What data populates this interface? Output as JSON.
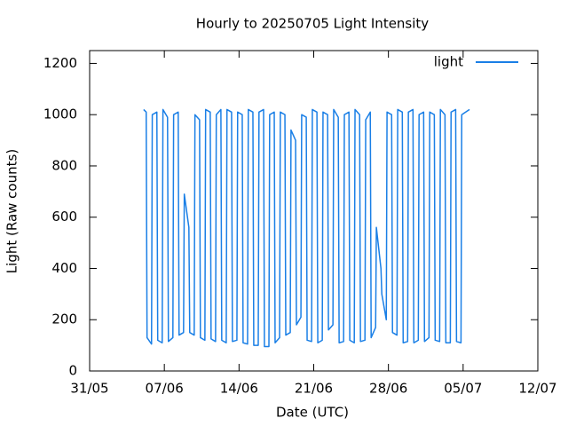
{
  "chart_data": {
    "type": "line",
    "title": "Hourly to 20250705 Light Intensity",
    "x_label": "Date (UTC)",
    "y_label": "Light (Raw counts)",
    "x": [
      5.06,
      5.3,
      5.38,
      5.8,
      5.87,
      6.3,
      6.38,
      6.8,
      6.87,
      7.3,
      7.38,
      7.8,
      7.87,
      8.3,
      8.38,
      8.8,
      8.87,
      9.3,
      9.38,
      9.8,
      9.87,
      10.3,
      10.38,
      10.8,
      10.87,
      11.3,
      11.38,
      11.8,
      11.87,
      12.3,
      12.38,
      12.8,
      12.87,
      13.3,
      13.38,
      13.8,
      13.87,
      14.3,
      14.38,
      14.8,
      14.87,
      15.3,
      15.38,
      15.8,
      15.87,
      16.3,
      16.38,
      16.8,
      16.87,
      17.3,
      17.38,
      17.8,
      17.87,
      18.3,
      18.38,
      18.8,
      18.87,
      19.3,
      19.38,
      19.8,
      19.87,
      20.3,
      20.38,
      20.8,
      20.87,
      21.3,
      21.38,
      21.8,
      21.87,
      22.3,
      22.38,
      22.8,
      22.87,
      23.3,
      23.38,
      23.8,
      23.87,
      24.3,
      24.38,
      24.8,
      24.87,
      25.3,
      25.38,
      25.8,
      25.87,
      26.3,
      26.38,
      26.8,
      26.87,
      27.3,
      27.38,
      27.8,
      27.87,
      28.3,
      28.38,
      28.8,
      28.87,
      29.3,
      29.38,
      29.8,
      29.87,
      30.3,
      30.38,
      30.8,
      30.87,
      31.3,
      31.38,
      31.8,
      31.87,
      32.3,
      32.38,
      32.8,
      32.87,
      33.3,
      33.38,
      33.8,
      33.87,
      34.3,
      34.38,
      34.8,
      34.87,
      35.6
    ],
    "series": [
      {
        "name": "light",
        "color": "#1a7fe6",
        "values": [
          1020,
          1010,
          130,
          105,
          1000,
          1010,
          120,
          110,
          1020,
          990,
          115,
          130,
          1000,
          1010,
          140,
          150,
          690,
          560,
          150,
          140,
          1000,
          980,
          130,
          120,
          1020,
          1010,
          125,
          115,
          1000,
          1020,
          120,
          110,
          1020,
          1010,
          115,
          120,
          1010,
          1000,
          110,
          105,
          1020,
          1010,
          100,
          100,
          1010,
          1020,
          95,
          95,
          1000,
          1010,
          110,
          130,
          1010,
          1000,
          140,
          150,
          940,
          900,
          180,
          210,
          1000,
          990,
          120,
          115,
          1020,
          1010,
          110,
          120,
          1010,
          1000,
          160,
          180,
          1020,
          990,
          110,
          115,
          1000,
          1010,
          120,
          110,
          1020,
          1000,
          115,
          120,
          980,
          1010,
          130,
          170,
          560,
          400,
          300,
          200,
          1010,
          1000,
          150,
          140,
          1020,
          1010,
          110,
          115,
          1010,
          1020,
          110,
          120,
          1000,
          1010,
          115,
          130,
          1010,
          1000,
          120,
          115,
          1020,
          1000,
          110,
          110,
          1010,
          1020,
          115,
          110,
          1000,
          1020
        ]
      }
    ],
    "xlim": [
      0,
      42
    ],
    "xticks": [
      {
        "value": 0,
        "label": "31/05"
      },
      {
        "value": 7,
        "label": "07/06"
      },
      {
        "value": 14,
        "label": "14/06"
      },
      {
        "value": 21,
        "label": "21/06"
      },
      {
        "value": 28,
        "label": "28/06"
      },
      {
        "value": 35,
        "label": "05/07"
      },
      {
        "value": 42,
        "label": "12/07"
      }
    ],
    "ylim": [
      0,
      1250
    ],
    "yticks": [
      0,
      200,
      400,
      600,
      800,
      1000,
      1200
    ],
    "legend": "top-right",
    "grid": false
  }
}
